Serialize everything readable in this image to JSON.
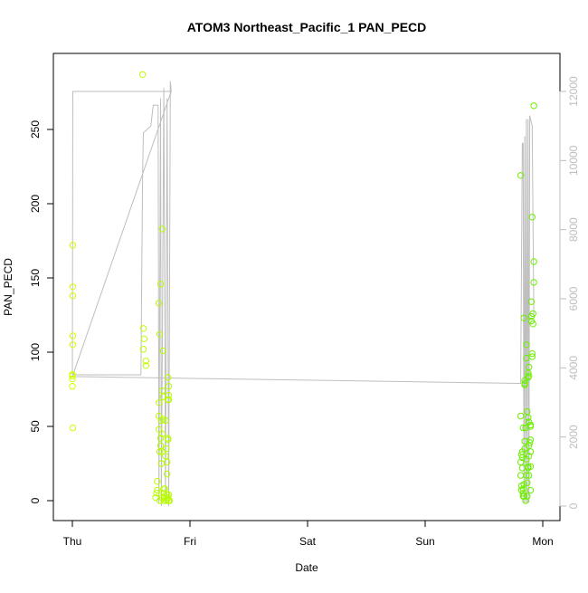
{
  "chart_data": {
    "type": "scatter",
    "title": "ATOM3 Northeast_Pacific_1 PAN_PECD",
    "xlabel": "Date",
    "ylabel": "PAN_PECD",
    "x_ticks": [
      "Thu",
      "Fri",
      "Sat",
      "Sun",
      "Mon"
    ],
    "xlim": [
      "Thu 00:00",
      "Mon 03:00"
    ],
    "y_ticks": [
      0,
      50,
      100,
      150,
      200,
      250
    ],
    "ylim": [
      -5,
      288
    ],
    "y2_ticks": [
      0,
      2000,
      4000,
      6000,
      8000,
      10000,
      12000
    ],
    "y2lim": [
      -100,
      12900
    ],
    "grid": false,
    "legend": "none",
    "colors": {
      "points_early": "#ccff00",
      "points_late": "#66ee00",
      "altitude_line": "#bebebe",
      "axis": "#000000"
    },
    "series": [
      {
        "kind": "scatter",
        "y_axis": "left",
        "points": [
          [
            "Thu 00:00",
            84
          ],
          [
            "Thu 00:00",
            77
          ],
          [
            "Thu 00:00",
            85
          ],
          [
            "Thu 00:00",
            82
          ],
          [
            "Thu 00:05",
            49
          ],
          [
            "Thu 00:05",
            111
          ],
          [
            "Thu 00:05",
            105
          ],
          [
            "Thu 00:05",
            172
          ],
          [
            "Thu 00:05",
            138
          ],
          [
            "Thu 00:05",
            144
          ],
          [
            "Thu 14:30",
            102
          ],
          [
            "Thu 14:30",
            116
          ],
          [
            "Thu 14:40",
            109
          ],
          [
            "Thu 15:00",
            91
          ],
          [
            "Thu 15:00",
            94
          ],
          [
            "Thu 14:20",
            287
          ],
          [
            "Thu 17:00",
            2
          ],
          [
            "Thu 17:10",
            5
          ],
          [
            "Thu 17:20",
            13
          ],
          [
            "Thu 17:20",
            7
          ],
          [
            "Thu 17:40",
            133
          ],
          [
            "Thu 17:40",
            48
          ],
          [
            "Thu 17:40",
            57
          ],
          [
            "Thu 17:40",
            66
          ],
          [
            "Thu 17:50",
            33
          ],
          [
            "Thu 17:50",
            0
          ],
          [
            "Thu 17:50",
            112
          ],
          [
            "Thu 18:00",
            146
          ],
          [
            "Thu 18:00",
            37
          ],
          [
            "Thu 18:00",
            42
          ],
          [
            "Thu 18:10",
            25
          ],
          [
            "Thu 18:10",
            54
          ],
          [
            "Thu 18:20",
            183
          ],
          [
            "Thu 18:20",
            74
          ],
          [
            "Thu 18:20",
            45
          ],
          [
            "Thu 18:20",
            33
          ],
          [
            "Thu 18:20",
            2
          ],
          [
            "Thu 18:30",
            101
          ],
          [
            "Thu 18:30",
            55
          ],
          [
            "Thu 18:30",
            70
          ],
          [
            "Thu 18:40",
            5
          ],
          [
            "Thu 18:40",
            8
          ],
          [
            "Thu 18:40",
            0
          ],
          [
            "Thu 18:50",
            3
          ],
          [
            "Thu 18:50",
            8
          ],
          [
            "Thu 19:00",
            30
          ],
          [
            "Thu 19:00",
            54
          ],
          [
            "Thu 19:10",
            35
          ],
          [
            "Thu 19:10",
            0
          ],
          [
            "Thu 19:20",
            1
          ],
          [
            "Thu 19:20",
            4
          ],
          [
            "Thu 19:20",
            26
          ],
          [
            "Thu 19:20",
            18
          ],
          [
            "Thu 19:30",
            41
          ],
          [
            "Thu 19:30",
            42
          ],
          [
            "Thu 19:30",
            68
          ],
          [
            "Thu 19:30",
            83
          ],
          [
            "Thu 19:30",
            2
          ],
          [
            "Thu 19:40",
            71
          ],
          [
            "Thu 19:40",
            68
          ],
          [
            "Thu 19:40",
            77
          ],
          [
            "Thu 19:40",
            0
          ],
          [
            "Thu 19:40",
            4
          ],
          [
            "Thu 19:50",
            0
          ],
          [
            "Sun 19:30",
            219
          ],
          [
            "Sun 19:30",
            57
          ],
          [
            "Sun 19:30",
            26
          ],
          [
            "Sun 19:30",
            17
          ],
          [
            "Sun 19:40",
            10
          ],
          [
            "Sun 19:40",
            7
          ],
          [
            "Sun 19:40",
            31
          ],
          [
            "Sun 19:50",
            33
          ],
          [
            "Sun 19:50",
            29
          ],
          [
            "Sun 19:50",
            22
          ],
          [
            "Sun 20:00",
            49
          ],
          [
            "Sun 20:00",
            8
          ],
          [
            "Sun 20:00",
            3
          ],
          [
            "Sun 20:00",
            5
          ],
          [
            "Sun 20:10",
            123
          ],
          [
            "Sun 20:10",
            3
          ],
          [
            "Sun 20:10",
            11
          ],
          [
            "Sun 20:20",
            79
          ],
          [
            "Sun 20:20",
            78
          ],
          [
            "Sun 20:20",
            81
          ],
          [
            "Sun 20:20",
            40
          ],
          [
            "Sun 20:20",
            35
          ],
          [
            "Sun 20:30",
            49
          ],
          [
            "Sun 20:30",
            0
          ],
          [
            "Sun 20:40",
            96
          ],
          [
            "Sun 20:40",
            105
          ],
          [
            "Sun 20:40",
            28
          ],
          [
            "Sun 20:40",
            17
          ],
          [
            "Sun 20:50",
            60
          ],
          [
            "Sun 20:50",
            12
          ],
          [
            "Sun 20:50",
            3
          ],
          [
            "Sun 21:00",
            83
          ],
          [
            "Sun 21:00",
            86
          ],
          [
            "Sun 21:00",
            56
          ],
          [
            "Sun 21:00",
            23
          ],
          [
            "Sun 21:00",
            22
          ],
          [
            "Sun 21:10",
            90
          ],
          [
            "Sun 21:10",
            84
          ],
          [
            "Sun 21:10",
            53
          ],
          [
            "Sun 21:10",
            37
          ],
          [
            "Sun 21:10",
            17
          ],
          [
            "Sun 21:10",
            30
          ],
          [
            "Sun 21:20",
            39
          ],
          [
            "Sun 21:30",
            51
          ],
          [
            "Sun 21:30",
            50
          ],
          [
            "Sun 21:30",
            41
          ],
          [
            "Sun 21:30",
            33
          ],
          [
            "Sun 21:30",
            23
          ],
          [
            "Sun 21:30",
            7
          ],
          [
            "Sun 21:40",
            134
          ],
          [
            "Sun 21:40",
            124
          ],
          [
            "Sun 21:40",
            121
          ],
          [
            "Sun 21:50",
            191
          ],
          [
            "Sun 21:50",
            99
          ],
          [
            "Sun 21:50",
            97
          ],
          [
            "Sun 22:00",
            126
          ],
          [
            "Sun 22:00",
            119
          ],
          [
            "Sun 22:10",
            161
          ],
          [
            "Sun 22:10",
            147
          ],
          [
            "Sun 22:10",
            266
          ]
        ]
      },
      {
        "kind": "line",
        "y_axis": "right",
        "points": [
          [
            "Thu 00:00",
            3800
          ],
          [
            "Thu 00:05",
            12000
          ],
          [
            "Thu 20:00",
            12000
          ],
          [
            "Thu 20:00",
            12300
          ],
          [
            "Thu 20:10",
            12000
          ],
          [
            "Thu 20:00",
            11900
          ]
        ]
      },
      {
        "kind": "line",
        "y_axis": "right",
        "points": [
          [
            "Thu 00:00",
            3800
          ],
          [
            "Thu 12:00",
            3800
          ],
          [
            "Thu 14:00",
            3800
          ],
          [
            "Thu 14:20",
            9500
          ],
          [
            "Thu 14:30",
            10800
          ],
          [
            "Thu 16:00",
            11000
          ],
          [
            "Thu 16:30",
            11600
          ],
          [
            "Thu 17:30",
            11600
          ],
          [
            "Thu 17:40",
            100
          ],
          [
            "Thu 18:00",
            11800
          ],
          [
            "Thu 18:10",
            0
          ],
          [
            "Thu 18:40",
            12100
          ],
          [
            "Thu 19:00",
            100
          ],
          [
            "Thu 19:20",
            11800
          ],
          [
            "Thu 19:40",
            0
          ],
          [
            "Thu 20:00",
            12200
          ],
          [
            "Thu 20:10",
            12000
          ],
          [
            "Thu 00:00",
            3750
          ],
          [
            "Sun 19:20",
            3550
          ],
          [
            "Sun 19:30",
            3550
          ],
          [
            "Sun 19:50",
            10500
          ],
          [
            "Sun 20:00",
            10500
          ],
          [
            "Sun 20:10",
            100
          ],
          [
            "Sun 20:20",
            10700
          ],
          [
            "Sun 20:30",
            100
          ],
          [
            "Sun 20:40",
            11200
          ],
          [
            "Sun 20:50",
            100
          ],
          [
            "Sun 21:00",
            11200
          ],
          [
            "Sun 21:10",
            100
          ],
          [
            "Sun 21:20",
            11300
          ],
          [
            "Sun 21:30",
            11200
          ],
          [
            "Sun 21:50",
            11000
          ],
          [
            "Sun 22:10",
            5500
          ]
        ]
      }
    ]
  }
}
